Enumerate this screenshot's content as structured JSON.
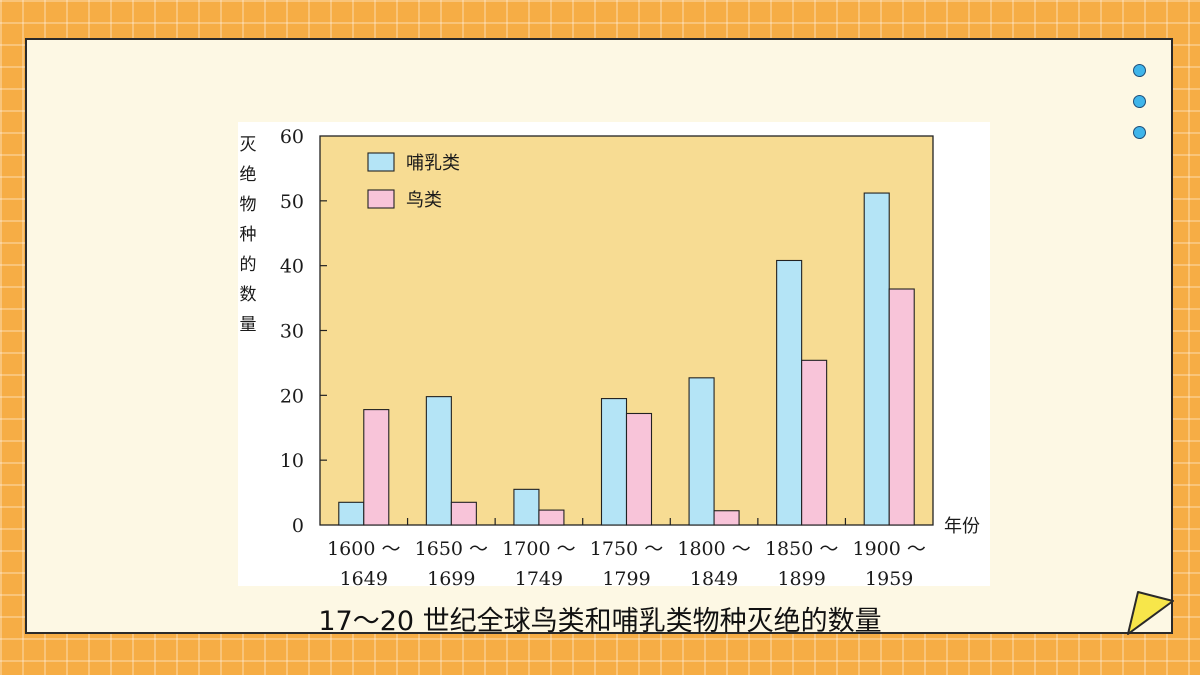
{
  "caption": "17～20 世纪全球鸟类和哺乳类物种灭绝的数量",
  "colors": {
    "plot_background": "#f7dc93",
    "mammal": "#b4e4f6",
    "bird": "#f8c4d9",
    "dot": "#3fb5ea",
    "page_background": "#f6ad45"
  },
  "chart_data": {
    "type": "bar",
    "ylabel": "灭绝物种的数量",
    "xlabel": "年份",
    "ylim": [
      0,
      60
    ],
    "yticks": [
      0,
      10,
      20,
      30,
      40,
      50,
      60
    ],
    "grid": false,
    "legend_placement": "top-left",
    "categories": [
      [
        "1600 ～",
        "1649"
      ],
      [
        "1650 ～",
        "1699"
      ],
      [
        "1700 ～",
        "1749"
      ],
      [
        "1750 ～",
        "1799"
      ],
      [
        "1800 ～",
        "1849"
      ],
      [
        "1850 ～",
        "1899"
      ],
      [
        "1900 ～",
        "1959"
      ]
    ],
    "series": [
      {
        "name": "哺乳类",
        "color": "#b4e4f6",
        "values": [
          3.5,
          19.8,
          5.5,
          19.5,
          22.7,
          40.8,
          51.2
        ]
      },
      {
        "name": "鸟类",
        "color": "#f8c4d9",
        "values": [
          17.8,
          3.5,
          2.3,
          17.2,
          2.2,
          25.4,
          36.4
        ]
      }
    ]
  }
}
